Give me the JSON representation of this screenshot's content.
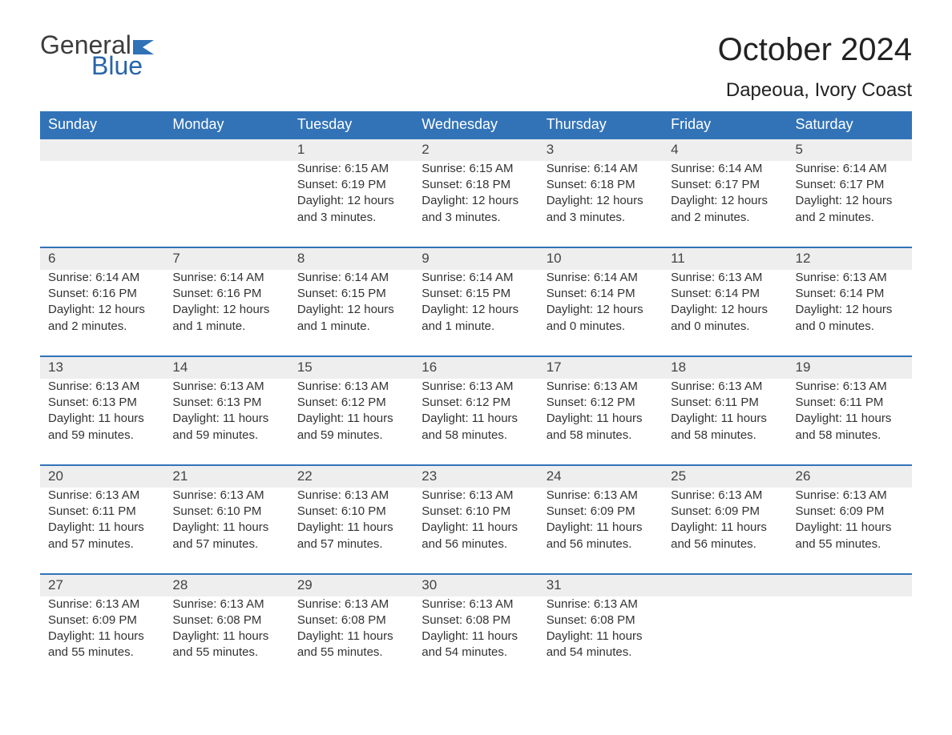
{
  "logo": {
    "general": "General",
    "blue": "Blue",
    "flag_color": "#2f72b6"
  },
  "header": {
    "month_title": "October 2024",
    "location": "Dapeoua, Ivory Coast"
  },
  "styling": {
    "header_bg": "#3273b8",
    "header_text": "#ffffff",
    "daynum_bg": "#eeeeee",
    "daynum_border": "#3273b8",
    "body_text": "#333333",
    "page_bg": "#ffffff",
    "title_fontsize": 40,
    "location_fontsize": 24,
    "weekday_fontsize": 18,
    "cell_fontsize": 15
  },
  "weekdays": [
    "Sunday",
    "Monday",
    "Tuesday",
    "Wednesday",
    "Thursday",
    "Friday",
    "Saturday"
  ],
  "weeks": [
    [
      null,
      null,
      {
        "day": "1",
        "sunrise": "Sunrise: 6:15 AM",
        "sunset": "Sunset: 6:19 PM",
        "dl1": "Daylight: 12 hours",
        "dl2": "and 3 minutes."
      },
      {
        "day": "2",
        "sunrise": "Sunrise: 6:15 AM",
        "sunset": "Sunset: 6:18 PM",
        "dl1": "Daylight: 12 hours",
        "dl2": "and 3 minutes."
      },
      {
        "day": "3",
        "sunrise": "Sunrise: 6:14 AM",
        "sunset": "Sunset: 6:18 PM",
        "dl1": "Daylight: 12 hours",
        "dl2": "and 3 minutes."
      },
      {
        "day": "4",
        "sunrise": "Sunrise: 6:14 AM",
        "sunset": "Sunset: 6:17 PM",
        "dl1": "Daylight: 12 hours",
        "dl2": "and 2 minutes."
      },
      {
        "day": "5",
        "sunrise": "Sunrise: 6:14 AM",
        "sunset": "Sunset: 6:17 PM",
        "dl1": "Daylight: 12 hours",
        "dl2": "and 2 minutes."
      }
    ],
    [
      {
        "day": "6",
        "sunrise": "Sunrise: 6:14 AM",
        "sunset": "Sunset: 6:16 PM",
        "dl1": "Daylight: 12 hours",
        "dl2": "and 2 minutes."
      },
      {
        "day": "7",
        "sunrise": "Sunrise: 6:14 AM",
        "sunset": "Sunset: 6:16 PM",
        "dl1": "Daylight: 12 hours",
        "dl2": "and 1 minute."
      },
      {
        "day": "8",
        "sunrise": "Sunrise: 6:14 AM",
        "sunset": "Sunset: 6:15 PM",
        "dl1": "Daylight: 12 hours",
        "dl2": "and 1 minute."
      },
      {
        "day": "9",
        "sunrise": "Sunrise: 6:14 AM",
        "sunset": "Sunset: 6:15 PM",
        "dl1": "Daylight: 12 hours",
        "dl2": "and 1 minute."
      },
      {
        "day": "10",
        "sunrise": "Sunrise: 6:14 AM",
        "sunset": "Sunset: 6:14 PM",
        "dl1": "Daylight: 12 hours",
        "dl2": "and 0 minutes."
      },
      {
        "day": "11",
        "sunrise": "Sunrise: 6:13 AM",
        "sunset": "Sunset: 6:14 PM",
        "dl1": "Daylight: 12 hours",
        "dl2": "and 0 minutes."
      },
      {
        "day": "12",
        "sunrise": "Sunrise: 6:13 AM",
        "sunset": "Sunset: 6:14 PM",
        "dl1": "Daylight: 12 hours",
        "dl2": "and 0 minutes."
      }
    ],
    [
      {
        "day": "13",
        "sunrise": "Sunrise: 6:13 AM",
        "sunset": "Sunset: 6:13 PM",
        "dl1": "Daylight: 11 hours",
        "dl2": "and 59 minutes."
      },
      {
        "day": "14",
        "sunrise": "Sunrise: 6:13 AM",
        "sunset": "Sunset: 6:13 PM",
        "dl1": "Daylight: 11 hours",
        "dl2": "and 59 minutes."
      },
      {
        "day": "15",
        "sunrise": "Sunrise: 6:13 AM",
        "sunset": "Sunset: 6:12 PM",
        "dl1": "Daylight: 11 hours",
        "dl2": "and 59 minutes."
      },
      {
        "day": "16",
        "sunrise": "Sunrise: 6:13 AM",
        "sunset": "Sunset: 6:12 PM",
        "dl1": "Daylight: 11 hours",
        "dl2": "and 58 minutes."
      },
      {
        "day": "17",
        "sunrise": "Sunrise: 6:13 AM",
        "sunset": "Sunset: 6:12 PM",
        "dl1": "Daylight: 11 hours",
        "dl2": "and 58 minutes."
      },
      {
        "day": "18",
        "sunrise": "Sunrise: 6:13 AM",
        "sunset": "Sunset: 6:11 PM",
        "dl1": "Daylight: 11 hours",
        "dl2": "and 58 minutes."
      },
      {
        "day": "19",
        "sunrise": "Sunrise: 6:13 AM",
        "sunset": "Sunset: 6:11 PM",
        "dl1": "Daylight: 11 hours",
        "dl2": "and 58 minutes."
      }
    ],
    [
      {
        "day": "20",
        "sunrise": "Sunrise: 6:13 AM",
        "sunset": "Sunset: 6:11 PM",
        "dl1": "Daylight: 11 hours",
        "dl2": "and 57 minutes."
      },
      {
        "day": "21",
        "sunrise": "Sunrise: 6:13 AM",
        "sunset": "Sunset: 6:10 PM",
        "dl1": "Daylight: 11 hours",
        "dl2": "and 57 minutes."
      },
      {
        "day": "22",
        "sunrise": "Sunrise: 6:13 AM",
        "sunset": "Sunset: 6:10 PM",
        "dl1": "Daylight: 11 hours",
        "dl2": "and 57 minutes."
      },
      {
        "day": "23",
        "sunrise": "Sunrise: 6:13 AM",
        "sunset": "Sunset: 6:10 PM",
        "dl1": "Daylight: 11 hours",
        "dl2": "and 56 minutes."
      },
      {
        "day": "24",
        "sunrise": "Sunrise: 6:13 AM",
        "sunset": "Sunset: 6:09 PM",
        "dl1": "Daylight: 11 hours",
        "dl2": "and 56 minutes."
      },
      {
        "day": "25",
        "sunrise": "Sunrise: 6:13 AM",
        "sunset": "Sunset: 6:09 PM",
        "dl1": "Daylight: 11 hours",
        "dl2": "and 56 minutes."
      },
      {
        "day": "26",
        "sunrise": "Sunrise: 6:13 AM",
        "sunset": "Sunset: 6:09 PM",
        "dl1": "Daylight: 11 hours",
        "dl2": "and 55 minutes."
      }
    ],
    [
      {
        "day": "27",
        "sunrise": "Sunrise: 6:13 AM",
        "sunset": "Sunset: 6:09 PM",
        "dl1": "Daylight: 11 hours",
        "dl2": "and 55 minutes."
      },
      {
        "day": "28",
        "sunrise": "Sunrise: 6:13 AM",
        "sunset": "Sunset: 6:08 PM",
        "dl1": "Daylight: 11 hours",
        "dl2": "and 55 minutes."
      },
      {
        "day": "29",
        "sunrise": "Sunrise: 6:13 AM",
        "sunset": "Sunset: 6:08 PM",
        "dl1": "Daylight: 11 hours",
        "dl2": "and 55 minutes."
      },
      {
        "day": "30",
        "sunrise": "Sunrise: 6:13 AM",
        "sunset": "Sunset: 6:08 PM",
        "dl1": "Daylight: 11 hours",
        "dl2": "and 54 minutes."
      },
      {
        "day": "31",
        "sunrise": "Sunrise: 6:13 AM",
        "sunset": "Sunset: 6:08 PM",
        "dl1": "Daylight: 11 hours",
        "dl2": "and 54 minutes."
      },
      null,
      null
    ]
  ]
}
